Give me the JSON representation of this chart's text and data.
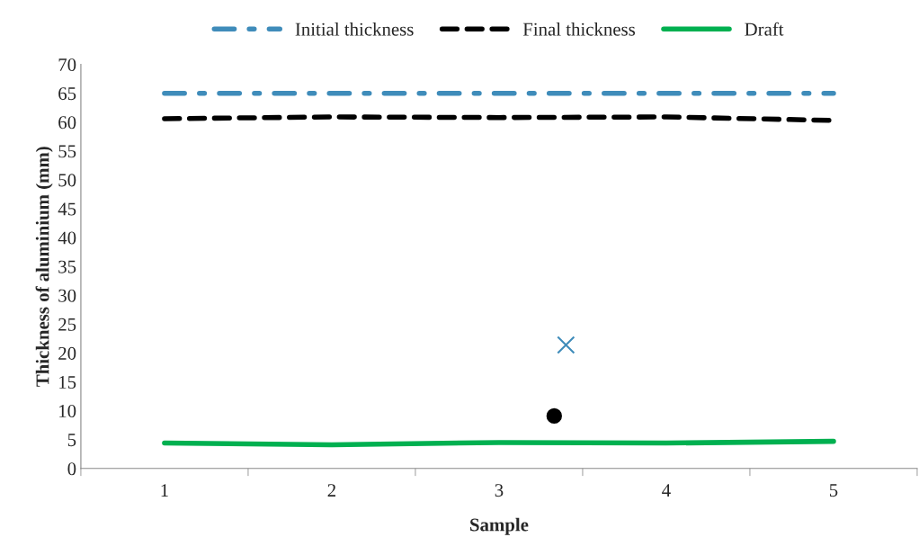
{
  "chart_data": {
    "type": "line",
    "xlabel": "Sample",
    "ylabel": "Thickness of aluminium (mm)",
    "x": [
      1,
      2,
      3,
      4,
      5
    ],
    "xlim": [
      0.5,
      5.5
    ],
    "xticks": [
      {
        "value": 0.5,
        "label": null
      },
      1,
      {
        "value": 1.5,
        "label": null
      },
      2,
      {
        "value": 2.5,
        "label": null
      },
      3,
      {
        "value": 3.5,
        "label": null
      },
      4,
      {
        "value": 4.5,
        "label": null
      },
      5,
      {
        "value": 5.5,
        "label": null
      }
    ],
    "ylim": [
      0,
      70
    ],
    "yticks": [
      0,
      5,
      10,
      15,
      20,
      25,
      30,
      35,
      40,
      45,
      50,
      55,
      60,
      65,
      70
    ],
    "grid": false,
    "legend": "top",
    "series": [
      {
        "name": "Initial thickness",
        "color": "#3f8cba",
        "line_style": "dashdot",
        "marker": "none",
        "values": [
          65,
          65,
          65,
          65,
          65
        ]
      },
      {
        "name": "Final thickness",
        "color": "#000000",
        "line_style": "dashed",
        "marker": "none",
        "values": [
          60.6,
          60.9,
          60.8,
          60.9,
          60.3
        ]
      },
      {
        "name": "Draft",
        "color": "#00b050",
        "line_style": "solid",
        "marker": "none",
        "values": [
          4.4,
          4.1,
          4.5,
          4.4,
          4.7
        ]
      },
      {
        "type": "scatter",
        "color": "#3f8cba",
        "marker": "cross",
        "x": [
          3.4
        ],
        "values": [
          21.4
        ]
      },
      {
        "type": "scatter",
        "color": "#000000",
        "marker": "circle",
        "x": [
          3.33
        ],
        "values": [
          9.1
        ]
      }
    ]
  }
}
